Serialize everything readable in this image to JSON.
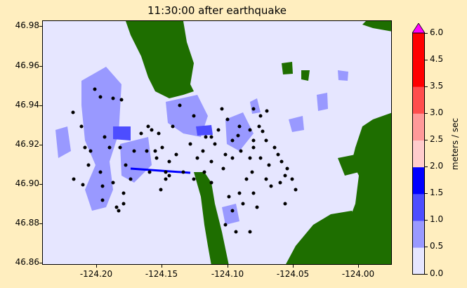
{
  "title": "11:30:00 after earthquake",
  "x_ticks": [
    "-124.20",
    "-124.15",
    "-124.10",
    "-124.05",
    "-124.00"
  ],
  "y_ticks": [
    "46.98",
    "46.96",
    "46.94",
    "46.92",
    "46.90",
    "46.88",
    "46.86"
  ],
  "colorbar": {
    "label": "meters / sec",
    "ticks": [
      "6.0",
      "4.5",
      "3.5",
      "3.0",
      "2.5",
      "2.0",
      "1.5",
      "1.0",
      "0.5",
      "0.0"
    ],
    "colors": [
      "#e6e6ff",
      "#9999ff",
      "#4d4dff",
      "#0000ff",
      "#ffcccc",
      "#ff9999",
      "#ff4d4d",
      "#ff0000",
      "#ff00ff"
    ]
  },
  "colors": {
    "background": "#ffeebf",
    "land": "#1e6e00",
    "water": "#e6e6ff"
  }
}
